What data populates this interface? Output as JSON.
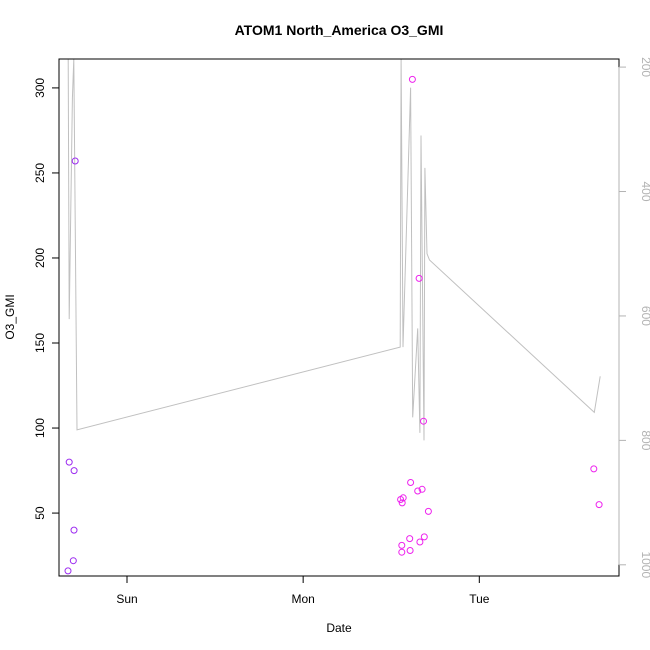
{
  "chart_data": {
    "type": "scatter",
    "title": "ATOM1 North_America O3_GMI",
    "xlabel": "Date",
    "ylabel": "O3_GMI",
    "x_ticks": [
      {
        "label": "Sun",
        "day": 1.0
      },
      {
        "label": "Mon",
        "day": 2.0
      },
      {
        "label": "Tue",
        "day": 3.0
      }
    ],
    "xlim_days": [
      0.614,
      3.793
    ],
    "ylim": [
      13,
      317
    ],
    "y_ticks": [
      50,
      100,
      150,
      200,
      250,
      300
    ],
    "right_axis": {
      "ylim": [
        1018,
        187
      ],
      "ticks": [
        200,
        400,
        600,
        800,
        1000
      ],
      "color": "#b3b3b3"
    },
    "series": [
      {
        "color": "#9c2bf0",
        "points": [
          {
            "day": 0.665,
            "y": 16
          },
          {
            "day": 0.672,
            "y": 80
          },
          {
            "day": 0.695,
            "y": 22
          },
          {
            "day": 0.699,
            "y": 40
          },
          {
            "day": 0.7,
            "y": 75
          },
          {
            "day": 0.706,
            "y": 257
          }
        ]
      },
      {
        "color": "#ee22ee",
        "points": [
          {
            "day": 2.553,
            "y": 58
          },
          {
            "day": 2.56,
            "y": 27
          },
          {
            "day": 2.56,
            "y": 31
          },
          {
            "day": 2.562,
            "y": 56
          },
          {
            "day": 2.568,
            "y": 59
          },
          {
            "day": 2.605,
            "y": 35
          },
          {
            "day": 2.607,
            "y": 28
          },
          {
            "day": 2.61,
            "y": 68
          },
          {
            "day": 2.62,
            "y": 305
          },
          {
            "day": 2.65,
            "y": 63
          },
          {
            "day": 2.658,
            "y": 188
          },
          {
            "day": 2.663,
            "y": 33
          },
          {
            "day": 2.675,
            "y": 64
          },
          {
            "day": 2.683,
            "y": 104
          },
          {
            "day": 2.688,
            "y": 36
          },
          {
            "day": 2.711,
            "y": 51
          },
          {
            "day": 3.65,
            "y": 76
          },
          {
            "day": 3.68,
            "y": 55
          }
        ]
      }
    ],
    "pressure_line": {
      "color": "#c0c0c0",
      "points": [
        {
          "day": 0.666,
          "p": 187
        },
        {
          "day": 0.672,
          "p": 605
        },
        {
          "day": 0.69,
          "p": 250
        },
        {
          "day": 0.698,
          "p": 187
        },
        {
          "day": 0.716,
          "p": 783
        },
        {
          "day": 2.551,
          "p": 650
        },
        {
          "day": 2.556,
          "p": 187
        },
        {
          "day": 2.567,
          "p": 650
        },
        {
          "day": 2.61,
          "p": 233
        },
        {
          "day": 2.622,
          "p": 763
        },
        {
          "day": 2.65,
          "p": 620
        },
        {
          "day": 2.663,
          "p": 788
        },
        {
          "day": 2.669,
          "p": 310
        },
        {
          "day": 2.686,
          "p": 800
        },
        {
          "day": 2.691,
          "p": 362
        },
        {
          "day": 2.703,
          "p": 500
        },
        {
          "day": 2.717,
          "p": 510
        },
        {
          "day": 3.653,
          "p": 755
        },
        {
          "day": 3.686,
          "p": 697
        }
      ]
    }
  }
}
